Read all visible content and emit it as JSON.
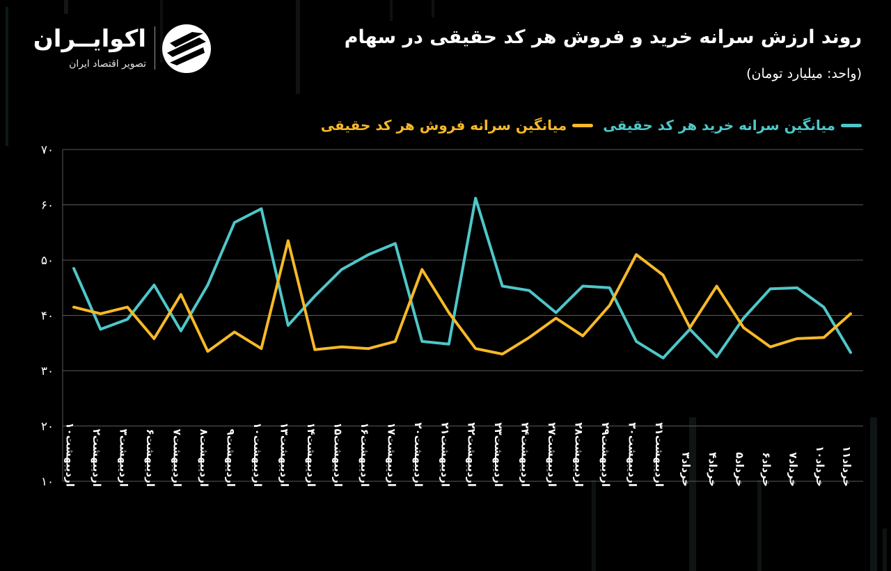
{
  "header": {
    "title": "روند ارزش سرانه خرید و فروش هر کد حقیقی در سهام",
    "unit": "(واحد: میلیارد تومان)"
  },
  "logo": {
    "name": "اکوایــران",
    "subtitle": "تصویر اقتصاد ایران"
  },
  "colors": {
    "buy": "#4fc7c9",
    "sell": "#f7b928",
    "grid": "#5a5a5a",
    "background": "#000000"
  },
  "chart_data": {
    "type": "line",
    "title": "روند ارزش سرانه خرید و فروش هر کد حقیقی در سهام",
    "ylabel": "",
    "xlabel": "",
    "ylim": [
      10,
      70
    ],
    "yticks": [
      "۱۰",
      "۲۰",
      "۳۰",
      "۴۰",
      "۵۰",
      "۶۰",
      "۷۰"
    ],
    "ytick_values": [
      10,
      20,
      30,
      40,
      50,
      60,
      70
    ],
    "grid": true,
    "legend_position": "top-right",
    "categories": [
      "اردیبهشت۱۰",
      "اردیبهشت۲",
      "اردیبهشت۳",
      "اردیبهشت۶",
      "اردیبهشت۷",
      "اردیبهشت۸",
      "اردیبهشت۹",
      "اردیبهشت۱۰",
      "اردیبهشت۱۳",
      "اردیبهشت۱۴",
      "اردیبهشت۱۵",
      "اردیبهشت۱۶",
      "اردیبهشت۱۷",
      "اردیبهشت۲۰",
      "اردیبهشت۲۱",
      "اردیبهشت۲۲",
      "اردیبهشت۲۳",
      "اردیبهشت۲۴",
      "اردیبهشت۲۷",
      "اردیبهشت۲۸",
      "اردیبهشت۲۹",
      "اردیبهشت۳۰",
      "اردیبهشت۳۱",
      "خرداد۳",
      "خرداد۴",
      "خرداد۵",
      "خرداد۶",
      "خرداد۷",
      "خرداد۱۰",
      "خرداد۱۱"
    ],
    "series": [
      {
        "name": "میانگین سرانه خرید هر کد حقیقی",
        "color": "#4fc7c9",
        "values": [
          48.5,
          37.5,
          39.3,
          45.5,
          37.2,
          45.5,
          56.8,
          59.3,
          38.2,
          43.5,
          48.3,
          51.0,
          53.0,
          35.3,
          34.8,
          61.2,
          45.3,
          44.5,
          40.5,
          45.3,
          45.0,
          35.3,
          32.3,
          37.5,
          32.5,
          39.5,
          44.8,
          45.0,
          41.5,
          33.3
        ]
      },
      {
        "name": "میانگین سرانه فروش هر کد حقیقی",
        "color": "#f7b928",
        "values": [
          41.5,
          40.3,
          41.5,
          35.8,
          43.8,
          33.5,
          37.0,
          34.0,
          53.5,
          33.8,
          34.3,
          34.0,
          35.3,
          48.3,
          40.5,
          34.0,
          33.0,
          36.0,
          39.5,
          36.3,
          41.8,
          51.0,
          47.3,
          37.8,
          45.3,
          37.8,
          34.3,
          35.8,
          36.0,
          40.3
        ]
      }
    ]
  }
}
